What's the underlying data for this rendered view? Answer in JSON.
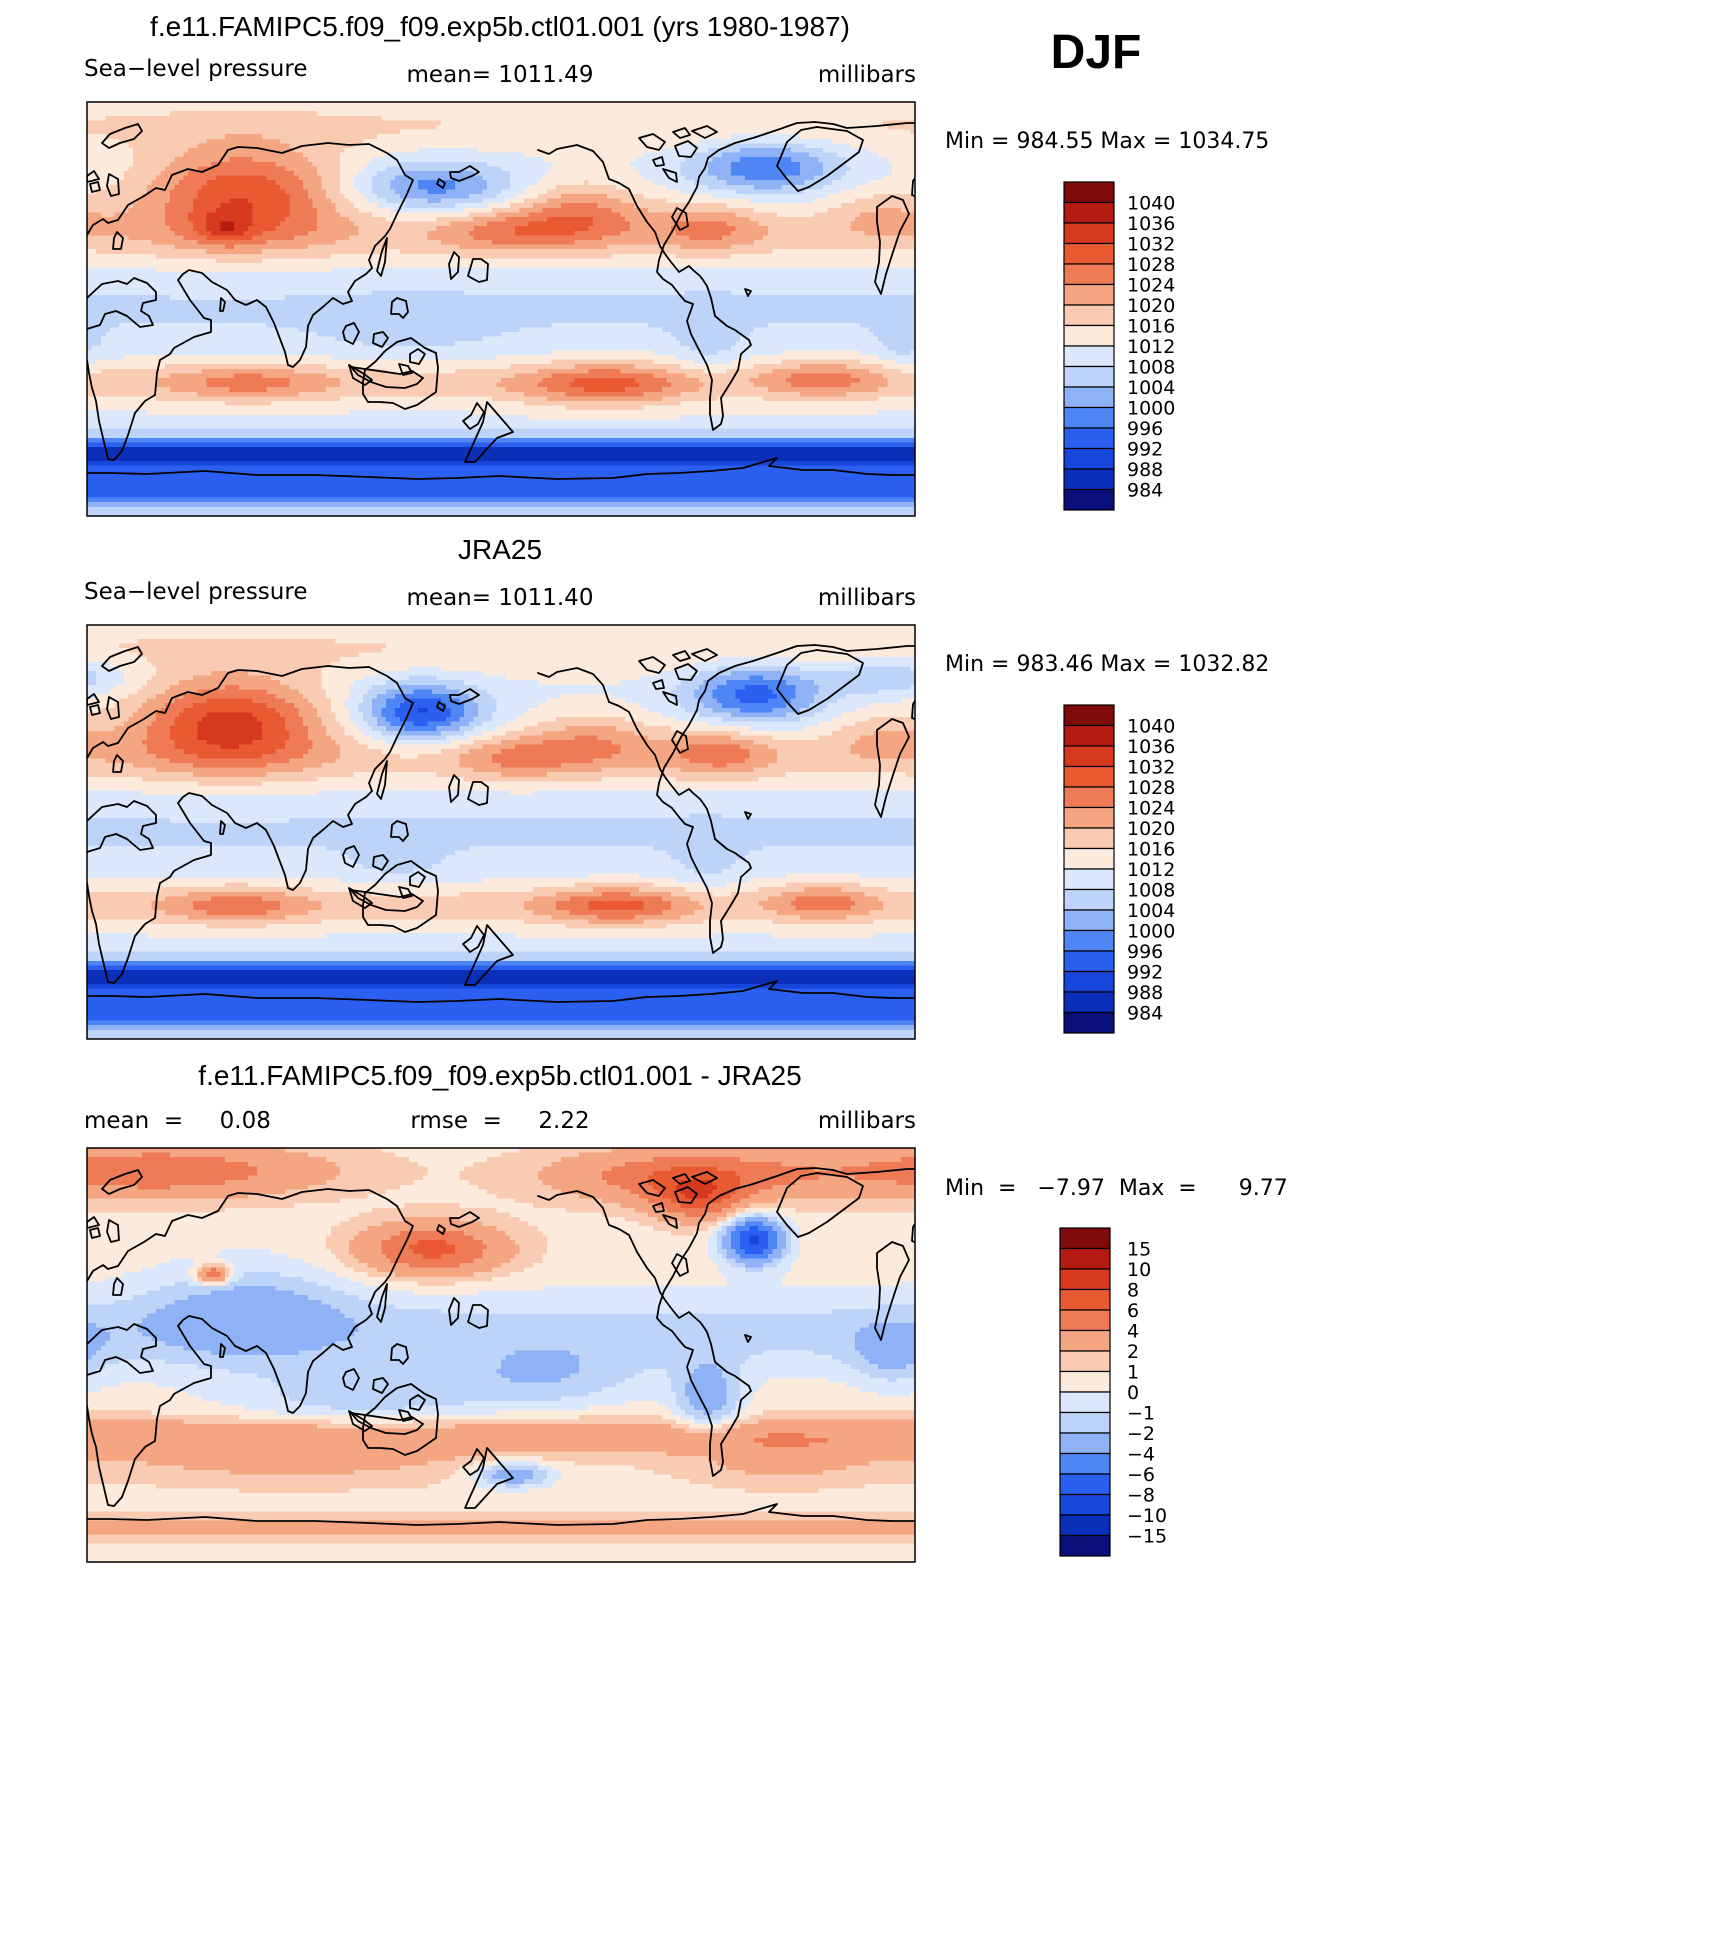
{
  "season": "DJF",
  "palettes": {
    "slp": [
      "#0a0f7a",
      "#0b2fb8",
      "#1746db",
      "#2a5ff0",
      "#4f86f5",
      "#8fb2f7",
      "#bdd3f7",
      "#dbe8fb",
      "#fcebdc",
      "#f8cbb2",
      "#f4a582",
      "#ee7b55",
      "#ea5a32",
      "#d6391d",
      "#b41c13",
      "#7f0a0a"
    ],
    "diff": [
      "#0a0f7a",
      "#0b2fb8",
      "#1746db",
      "#2a5ff0",
      "#4f86f5",
      "#8fb2f7",
      "#bdd3f7",
      "#dbe8fb",
      "#fcebdc",
      "#f8cbb2",
      "#f4a582",
      "#ee7b55",
      "#ea5a32",
      "#d6391d",
      "#b41c13",
      "#7f0a0a"
    ]
  },
  "chart_data": [
    {
      "type": "heatmap",
      "title": "f.e11.FAMIPC5.f09_f09.exp5b.ctl01.001 (yrs 1980-1987)",
      "left_label": "Sea−level pressure",
      "center_label": "mean=  1011.49",
      "right_label": "millibars",
      "mean": 1011.49,
      "units": "millibars",
      "min_max_label": "Min  =  984.55  Max  =  1034.75",
      "min": 984.55,
      "max": 1034.75,
      "palette": "slp",
      "levels": [
        "1040",
        "1036",
        "1032",
        "1028",
        "1024",
        "1020",
        "1016",
        "1012",
        "1008",
        "1004",
        "1000",
        "996",
        "992",
        "988",
        "984"
      ],
      "blobs": [
        {
          "lon": 98,
          "lat": 50,
          "sx": 32,
          "sy": 15,
          "a": 20
        },
        {
          "lon": 90,
          "lat": 35,
          "sx": 8,
          "sy": 5,
          "a": 8
        },
        {
          "lon": 245,
          "lat": 42,
          "sx": 20,
          "sy": 10,
          "a": 12
        },
        {
          "lon": 300,
          "lat": 36,
          "sx": 18,
          "sy": 8,
          "a": 9
        },
        {
          "lon": 210,
          "lat": 34,
          "sx": 22,
          "sy": 7,
          "a": 9
        },
        {
          "lon": 15,
          "lat": 42,
          "sx": 18,
          "sy": 8,
          "a": 6
        },
        {
          "lon": 180,
          "lat": 53,
          "sx": 25,
          "sy": 8,
          "a": -13
        },
        {
          "lon": 325,
          "lat": 62,
          "sx": 22,
          "sy": 8,
          "a": -15
        },
        {
          "lon": 100,
          "lat": -32,
          "sx": 25,
          "sy": 6,
          "a": 8
        },
        {
          "lon": 255,
          "lat": -33,
          "sx": 25,
          "sy": 7,
          "a": 12
        },
        {
          "lon": 350,
          "lat": -30,
          "sx": 18,
          "sy": 6,
          "a": 9
        },
        {
          "lon": 170,
          "lat": -10,
          "sx": 25,
          "sy": 8,
          "a": -3
        },
        {
          "lon": 300,
          "lat": -15,
          "sx": 10,
          "sy": 10,
          "a": -4
        },
        {
          "lon": 25,
          "lat": -15,
          "sx": 8,
          "sy": 8,
          "a": -4
        }
      ]
    },
    {
      "type": "heatmap",
      "title": "JRA25",
      "left_label": "Sea−level pressure",
      "center_label": "mean=  1011.40",
      "right_label": "millibars",
      "mean": 1011.4,
      "units": "millibars",
      "min_max_label": "Min  =  983.46  Max  =  1032.82",
      "min": 983.46,
      "max": 1032.82,
      "palette": "slp",
      "levels": [
        "1040",
        "1036",
        "1032",
        "1028",
        "1024",
        "1020",
        "1016",
        "1012",
        "1008",
        "1004",
        "1000",
        "996",
        "992",
        "988",
        "984"
      ],
      "blobs": [
        {
          "lon": 92,
          "lat": 48,
          "sx": 30,
          "sy": 14,
          "a": 22
        },
        {
          "lon": 250,
          "lat": 40,
          "sx": 20,
          "sy": 9,
          "a": 9
        },
        {
          "lon": 305,
          "lat": 35,
          "sx": 17,
          "sy": 8,
          "a": 10
        },
        {
          "lon": 215,
          "lat": 32,
          "sx": 20,
          "sy": 7,
          "a": 8
        },
        {
          "lon": 15,
          "lat": 42,
          "sx": 18,
          "sy": 8,
          "a": 6
        },
        {
          "lon": 175,
          "lat": 52,
          "sx": 18,
          "sy": 9,
          "a": -20
        },
        {
          "lon": 320,
          "lat": 60,
          "sx": 20,
          "sy": 9,
          "a": -17
        },
        {
          "lon": 20,
          "lat": 68,
          "sx": 20,
          "sy": 6,
          "a": -8
        },
        {
          "lon": 95,
          "lat": -32,
          "sx": 22,
          "sy": 6,
          "a": 9
        },
        {
          "lon": 260,
          "lat": -32,
          "sx": 22,
          "sy": 6,
          "a": 12
        },
        {
          "lon": 350,
          "lat": -30,
          "sx": 16,
          "sy": 6,
          "a": 9
        },
        {
          "lon": 165,
          "lat": -12,
          "sx": 12,
          "sy": 6,
          "a": -4
        },
        {
          "lon": 300,
          "lat": -15,
          "sx": 10,
          "sy": 10,
          "a": -3
        }
      ]
    },
    {
      "type": "heatmap",
      "title": "f.e11.FAMIPC5.f09_f09.exp5b.ctl01.001 - JRA25",
      "left_label": "mean  =     0.08",
      "center_label": "rmse  =     2.22",
      "right_label": "millibars",
      "mean": 0.08,
      "rmse": 2.22,
      "units": "millibars",
      "min_max_label": "Min  =   −7.97  Max  =      9.77",
      "min": -7.97,
      "max": 9.77,
      "palette": "diff",
      "levels": [
        "15",
        "10",
        "8",
        "6",
        "4",
        "2",
        "1",
        "0",
        "−1",
        "−2",
        "−4",
        "−6",
        "−8",
        "−10",
        "−15"
      ],
      "blobs": [
        {
          "lon": 60,
          "lat": 80,
          "sx": 50,
          "sy": 8,
          "a": 5
        },
        {
          "lon": 290,
          "lat": 78,
          "sx": 40,
          "sy": 8,
          "a": 5
        },
        {
          "lon": 180,
          "lat": 46,
          "sx": 22,
          "sy": 8,
          "a": 6
        },
        {
          "lon": 295,
          "lat": 68,
          "sx": 14,
          "sy": 7,
          "a": 5
        },
        {
          "lon": 85,
          "lat": 35,
          "sx": 5,
          "sy": 3,
          "a": 6
        },
        {
          "lon": 320,
          "lat": 50,
          "sx": 9,
          "sy": 7,
          "a": -9
        },
        {
          "lon": 100,
          "lat": 20,
          "sx": 30,
          "sy": 15,
          "a": -2.5
        },
        {
          "lon": 150,
          "lat": -20,
          "sx": 40,
          "sy": 10,
          "a": -2
        },
        {
          "lon": 230,
          "lat": -10,
          "sx": 30,
          "sy": 10,
          "a": -2
        },
        {
          "lon": 300,
          "lat": -20,
          "sx": 10,
          "sy": 12,
          "a": -3.5
        },
        {
          "lon": 20,
          "lat": 0,
          "sx": 12,
          "sy": 10,
          "a": -2
        },
        {
          "lon": 215,
          "lat": -52,
          "sx": 12,
          "sy": 4,
          "a": -4
        },
        {
          "lon": 120,
          "lat": -45,
          "sx": 60,
          "sy": 8,
          "a": 2
        },
        {
          "lon": 330,
          "lat": -45,
          "sx": 30,
          "sy": 8,
          "a": 2
        }
      ]
    }
  ]
}
